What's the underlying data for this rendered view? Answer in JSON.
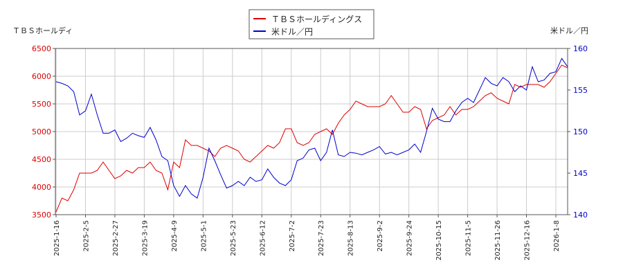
{
  "chart_data": {
    "type": "line",
    "y_label": "ＴＢＳホールディ",
    "y2_label": "米ドル／円",
    "categories": [
      "2025-1-16",
      null,
      null,
      null,
      null,
      "2025-2-5",
      null,
      null,
      null,
      null,
      "2025-2-27",
      null,
      null,
      null,
      null,
      "2025-3-19",
      null,
      null,
      null,
      null,
      "2025-4-9",
      null,
      null,
      null,
      null,
      "2025-5-1",
      null,
      null,
      null,
      null,
      "2025-5-23",
      null,
      null,
      null,
      null,
      "2025-6-12",
      null,
      null,
      null,
      null,
      "2025-7-2",
      null,
      null,
      null,
      null,
      "2025-7-23",
      null,
      null,
      null,
      null,
      "2025-8-13",
      null,
      null,
      null,
      null,
      "2025-9-2",
      null,
      null,
      null,
      null,
      "2025-9-24",
      null,
      null,
      null,
      null,
      "2025-10-15",
      null,
      null,
      null,
      null,
      "2025-11-5",
      null,
      null,
      null,
      null,
      "2025-11-26",
      null,
      null,
      null,
      null,
      "2025-12-16",
      null,
      null,
      null,
      null,
      "2026-1-8",
      null,
      null
    ],
    "series": [
      {
        "name": "ＴＢＳホールディングス",
        "color": "#dd0000",
        "values": [
          3550,
          3800,
          3750,
          3950,
          4250,
          4250,
          4250,
          4300,
          4450,
          4300,
          4150,
          4200,
          4300,
          4250,
          4350,
          4350,
          4450,
          4300,
          4250,
          3950,
          4450,
          4350,
          4850,
          4750,
          4750,
          4700,
          4650,
          4550,
          4700,
          4750,
          4700,
          4650,
          4500,
          4450,
          4550,
          4650,
          4750,
          4700,
          4800,
          5050,
          5050,
          4800,
          4750,
          4800,
          4950,
          5000,
          5050,
          4950,
          5150,
          5300,
          5400,
          5550,
          5500,
          5450,
          5450,
          5450,
          5500,
          5650,
          5500,
          5350,
          5350,
          5450,
          5400,
          5050,
          5200,
          5250,
          5300,
          5450,
          5300,
          5400,
          5400,
          5450,
          5550,
          5650,
          5700,
          5600,
          5550,
          5500,
          5850,
          5800,
          5850,
          5850,
          5850,
          5800,
          5900,
          6050,
          6200,
          6150
        ]
      },
      {
        "name": "米ドル／円",
        "color": "#0000cc",
        "axis": "y2",
        "values": [
          156,
          155.8,
          155.5,
          154.8,
          152,
          152.5,
          154.5,
          152,
          149.8,
          149.8,
          150.2,
          148.8,
          149.2,
          149.8,
          149.5,
          149.3,
          150.5,
          149,
          147,
          146.5,
          143.5,
          142.2,
          143.5,
          142.5,
          142,
          144.5,
          148,
          146.5,
          144.8,
          143.2,
          143.5,
          144,
          143.5,
          144.5,
          144,
          144.2,
          145.5,
          144.5,
          143.8,
          143.5,
          144.2,
          146.5,
          146.8,
          147.8,
          148,
          146.5,
          147.5,
          150.2,
          147.2,
          147,
          147.5,
          147.4,
          147.2,
          147.5,
          147.8,
          148.2,
          147.3,
          147.5,
          147.2,
          147.5,
          147.8,
          148.5,
          147.5,
          150,
          152.8,
          151.5,
          151.2,
          151.2,
          152.5,
          153.5,
          154,
          153.5,
          155,
          156.5,
          155.8,
          155.5,
          156.5,
          156,
          154.8,
          155.5,
          155,
          157.8,
          156,
          156.2,
          157,
          157.2,
          158.8,
          157.8
        ]
      }
    ],
    "ylim": [
      3500,
      6500
    ],
    "yticks": [
      3500,
      4000,
      4500,
      5000,
      5500,
      6000,
      6500
    ],
    "y2lim": [
      140,
      160
    ],
    "y2ticks": [
      140,
      145,
      150,
      155,
      160
    ],
    "grid": true
  }
}
